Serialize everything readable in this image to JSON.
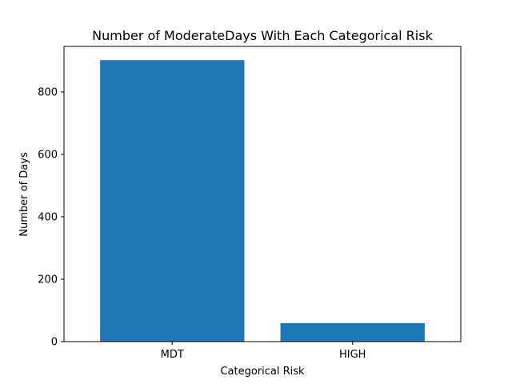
{
  "chart_data": {
    "type": "bar",
    "title": "Number of ModerateDays With Each Categorical Risk",
    "xlabel": "Categorical Risk",
    "ylabel": "Number of Days",
    "categories": [
      "MDT",
      "HIGH"
    ],
    "values": [
      902,
      59
    ],
    "ylim": [
      0,
      946
    ],
    "yticks": [
      0,
      200,
      400,
      600,
      800
    ],
    "grid": false,
    "legend": "none",
    "bar_color": "#1f77b4"
  }
}
